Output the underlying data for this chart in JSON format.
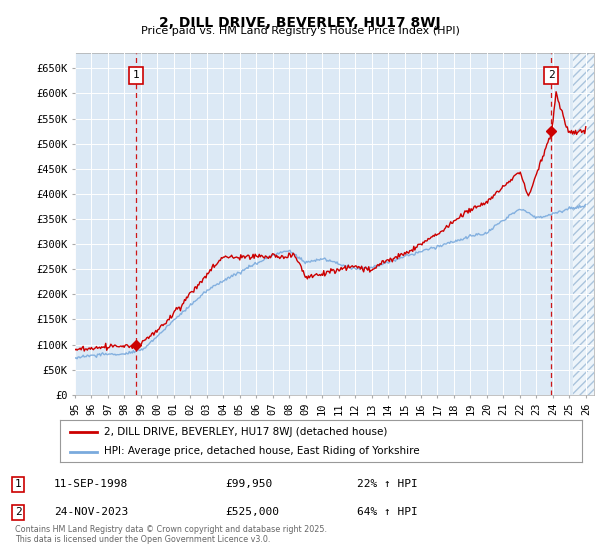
{
  "title": "2, DILL DRIVE, BEVERLEY, HU17 8WJ",
  "subtitle": "Price paid vs. HM Land Registry's House Price Index (HPI)",
  "bg_color": "#dce9f5",
  "red_line_color": "#cc0000",
  "blue_line_color": "#7aaadd",
  "dashed_red": "#cc0000",
  "ylim": [
    0,
    680000
  ],
  "yticks": [
    0,
    50000,
    100000,
    150000,
    200000,
    250000,
    300000,
    350000,
    400000,
    450000,
    500000,
    550000,
    600000,
    650000
  ],
  "ytick_labels": [
    "£0",
    "£50K",
    "£100K",
    "£150K",
    "£200K",
    "£250K",
    "£300K",
    "£350K",
    "£400K",
    "£450K",
    "£500K",
    "£550K",
    "£600K",
    "£650K"
  ],
  "xmin": 1995.0,
  "xmax": 2026.5,
  "sale1_x": 1998.7,
  "sale1_y": 99950,
  "sale1_label": "1",
  "sale1_date": "11-SEP-1998",
  "sale1_price": "£99,950",
  "sale1_hpi": "22% ↑ HPI",
  "sale2_x": 2023.9,
  "sale2_y": 525000,
  "sale2_label": "2",
  "sale2_date": "24-NOV-2023",
  "sale2_price": "£525,000",
  "sale2_hpi": "64% ↑ HPI",
  "legend_line1": "2, DILL DRIVE, BEVERLEY, HU17 8WJ (detached house)",
  "legend_line2": "HPI: Average price, detached house, East Riding of Yorkshire",
  "footer": "Contains HM Land Registry data © Crown copyright and database right 2025.\nThis data is licensed under the Open Government Licence v3.0.",
  "xtick_years": [
    1995,
    1996,
    1997,
    1998,
    1999,
    2000,
    2001,
    2002,
    2003,
    2004,
    2005,
    2006,
    2007,
    2008,
    2009,
    2010,
    2011,
    2012,
    2013,
    2014,
    2015,
    2016,
    2017,
    2018,
    2019,
    2020,
    2021,
    2022,
    2023,
    2024,
    2025,
    2026
  ],
  "hatch_start": 2025.25
}
